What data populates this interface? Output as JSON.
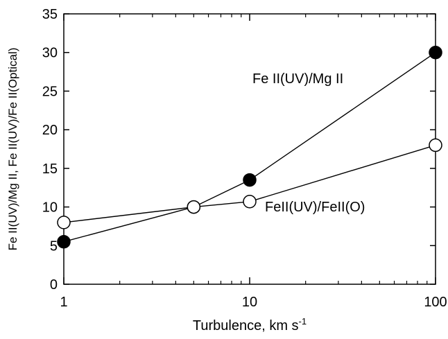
{
  "chart_data": {
    "type": "line",
    "title": "",
    "xlabel": "Turbulence, km s",
    "xlabel_superscript": "-1",
    "ylabel": "Fe II(UV)/Mg II, Fe II(UV)/Fe II(Optical)",
    "xscale": "log",
    "xlim": [
      1,
      100
    ],
    "ylim": [
      0,
      35
    ],
    "x_ticks": [
      1,
      10,
      100
    ],
    "x_tick_labels": [
      "1",
      "10",
      "100"
    ],
    "y_ticks": [
      0,
      5,
      10,
      15,
      20,
      25,
      30,
      35
    ],
    "y_tick_labels": [
      "0",
      "5",
      "10",
      "15",
      "20",
      "25",
      "30",
      "35"
    ],
    "grid": false,
    "series": [
      {
        "name": "Fe II(UV)/Mg II",
        "marker": "filled-circle",
        "x": [
          1,
          5,
          10,
          100
        ],
        "y": [
          5.5,
          10,
          13.5,
          30
        ]
      },
      {
        "name": "FeII(UV)/FeII(O)",
        "marker": "open-circle",
        "x": [
          1,
          5,
          10,
          100
        ],
        "y": [
          8,
          10,
          10.7,
          18
        ]
      }
    ],
    "annotations": [
      {
        "text": "Fe II(UV)/Mg II",
        "series": 0
      },
      {
        "text": "FeII(UV)/FeII(O)",
        "series": 1
      }
    ]
  }
}
